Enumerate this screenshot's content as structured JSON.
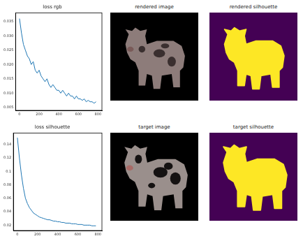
{
  "chart_data": [
    {
      "type": "line",
      "title": "loss rgb",
      "color": "#1f77b4",
      "x": [
        0,
        20,
        40,
        60,
        80,
        100,
        120,
        140,
        160,
        180,
        200,
        220,
        240,
        260,
        280,
        300,
        320,
        340,
        360,
        380,
        400,
        420,
        440,
        460,
        480,
        500,
        520,
        540,
        560,
        580,
        600,
        620,
        640,
        660,
        680,
        700,
        720,
        740,
        760,
        780
      ],
      "values": [
        0.036,
        0.031,
        0.027,
        0.025,
        0.023,
        0.022,
        0.02,
        0.021,
        0.018,
        0.017,
        0.018,
        0.016,
        0.015,
        0.014,
        0.015,
        0.013,
        0.012,
        0.013,
        0.012,
        0.011,
        0.011,
        0.01,
        0.011,
        0.01,
        0.009,
        0.01,
        0.009,
        0.009,
        0.008,
        0.009,
        0.008,
        0.008,
        0.0075,
        0.008,
        0.007,
        0.0075,
        0.007,
        0.007,
        0.0065,
        0.007
      ],
      "xlim": [
        -40,
        840
      ],
      "xticks": [
        0,
        200,
        400,
        600,
        800
      ],
      "ylim": [
        0.004,
        0.038
      ],
      "yticks": [
        0.005,
        {
          "value": 0.01,
          "label": "0.010"
        },
        0.015,
        {
          "value": 0.02,
          "label": "0.020"
        },
        0.025,
        {
          "value": 0.03,
          "label": "0.030"
        },
        0.035
      ],
      "grid": false
    },
    {
      "type": "line",
      "title": "loss silhouette",
      "color": "#1f77b4",
      "x": [
        0,
        20,
        40,
        60,
        80,
        100,
        120,
        140,
        160,
        180,
        200,
        220,
        240,
        260,
        280,
        300,
        320,
        340,
        360,
        380,
        400,
        420,
        440,
        460,
        480,
        500,
        520,
        540,
        560,
        580,
        600,
        620,
        640,
        660,
        680,
        700,
        720,
        740,
        760,
        780
      ],
      "values": [
        0.15,
        0.12,
        0.095,
        0.075,
        0.06,
        0.052,
        0.046,
        0.042,
        0.038,
        0.036,
        0.034,
        0.032,
        0.031,
        0.03,
        0.029,
        0.028,
        0.028,
        0.027,
        0.026,
        0.026,
        0.025,
        0.025,
        0.024,
        0.024,
        0.023,
        0.023,
        0.023,
        0.022,
        0.022,
        0.022,
        0.021,
        0.021,
        0.021,
        0.02,
        0.02,
        0.02,
        0.02,
        0.019,
        0.019,
        0.019
      ],
      "xlim": [
        -40,
        840
      ],
      "xticks": [
        0,
        200,
        400,
        600,
        800
      ],
      "ylim": [
        0.012,
        0.157
      ],
      "yticks": [
        0.02,
        0.04,
        0.06,
        0.08,
        0.1,
        0.12,
        0.14
      ],
      "grid": false
    }
  ],
  "images": [
    {
      "title": "rendered image"
    },
    {
      "title": "rendered silhouette"
    },
    {
      "title": "target image"
    },
    {
      "title": "target silhouette"
    }
  ]
}
